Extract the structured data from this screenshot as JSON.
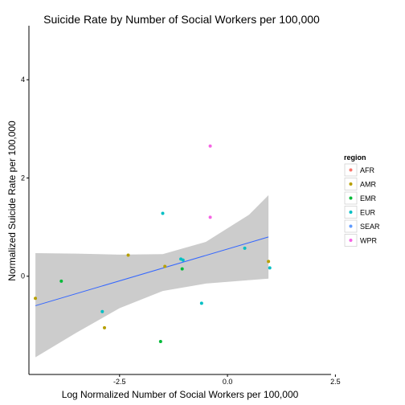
{
  "chart_data": {
    "type": "scatter",
    "title": "Suicide Rate by Number of Social Workers per 100,000",
    "xlabel": "Log Normalized Number of Social Workers per 100,000",
    "ylabel": "Normalized Suicide Rate per 100,000",
    "xlim": [
      -4.6,
      2.4
    ],
    "ylim": [
      -2.0,
      5.1
    ],
    "x_ticks": [
      -2.5,
      0.0,
      2.5
    ],
    "x_tick_labels": [
      "-2.5",
      "0.0",
      "2.5"
    ],
    "y_ticks": [
      0,
      2,
      4
    ],
    "y_tick_labels": [
      "0",
      "2",
      "4"
    ],
    "grid": false,
    "legend": {
      "title": "region",
      "position": "right"
    },
    "series": [
      {
        "name": "AFR",
        "color": "#F8766D",
        "points": []
      },
      {
        "name": "AMR",
        "color": "#B79F00",
        "points": [
          {
            "x": -4.45,
            "y": -0.45
          },
          {
            "x": -2.85,
            "y": -1.05
          },
          {
            "x": -2.3,
            "y": 0.43
          },
          {
            "x": -1.45,
            "y": 0.2
          },
          {
            "x": 0.95,
            "y": 0.3
          }
        ]
      },
      {
        "name": "EMR",
        "color": "#00BA38",
        "points": [
          {
            "x": -3.85,
            "y": -0.1
          },
          {
            "x": -1.55,
            "y": -1.33
          },
          {
            "x": -1.05,
            "y": 0.15
          }
        ]
      },
      {
        "name": "EUR",
        "color": "#00BFC4",
        "points": [
          {
            "x": -2.9,
            "y": -0.72
          },
          {
            "x": -1.5,
            "y": 1.28
          },
          {
            "x": -1.08,
            "y": 0.35
          },
          {
            "x": -1.03,
            "y": 0.33
          },
          {
            "x": -0.6,
            "y": -0.55
          },
          {
            "x": 0.4,
            "y": 0.57
          },
          {
            "x": 0.98,
            "y": 0.17
          }
        ]
      },
      {
        "name": "SEAR",
        "color": "#619CFF",
        "points": []
      },
      {
        "name": "WPR",
        "color": "#F564E3",
        "points": [
          {
            "x": -0.4,
            "y": 2.65
          },
          {
            "x": -0.4,
            "y": 1.2
          }
        ]
      }
    ],
    "fit_line": {
      "color": "#3366FF",
      "x": [
        -4.45,
        0.95
      ],
      "y": [
        -0.6,
        0.8
      ]
    },
    "confidence_band": {
      "color": "#CCCCCC",
      "x": [
        -4.45,
        -3.5,
        -2.5,
        -1.5,
        -0.5,
        0.5,
        0.95
      ],
      "upper": [
        0.47,
        0.46,
        0.44,
        0.45,
        0.7,
        1.25,
        1.65
      ],
      "lower": [
        -1.65,
        -1.15,
        -0.65,
        -0.3,
        -0.15,
        -0.08,
        -0.05
      ]
    }
  }
}
